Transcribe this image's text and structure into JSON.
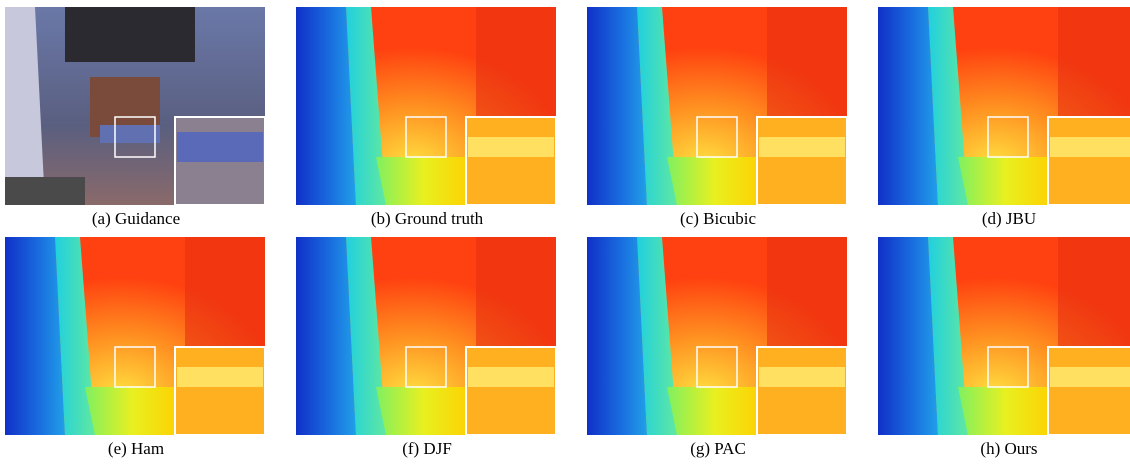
{
  "figures": [
    {
      "caption": "(a) Guidance"
    },
    {
      "caption": "(b) Ground truth"
    },
    {
      "caption": "(c) Bicubic"
    },
    {
      "caption": "(d) JBU"
    },
    {
      "caption": "(e) Ham"
    },
    {
      "caption": "(f) DJF"
    },
    {
      "caption": "(g) PAC"
    },
    {
      "caption": "(h) Ours"
    }
  ]
}
